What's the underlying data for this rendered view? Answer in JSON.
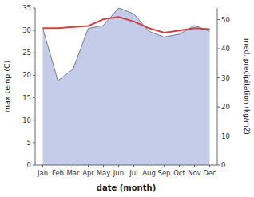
{
  "chart_data": {
    "type": "line",
    "xlabel": "date (month)",
    "ylabel": "max temp (C)",
    "y2label": "med. precipitation (kg/m2)",
    "categories": [
      "Jan",
      "Feb",
      "Mar",
      "Apr",
      "May",
      "Jun",
      "Jul",
      "Aug",
      "Sep",
      "Oct",
      "Nov",
      "Dec"
    ],
    "series": [
      {
        "type": "area",
        "axis": "y2",
        "color": "#c5ccea",
        "values": [
          47,
          29,
          33,
          47,
          48,
          54,
          52,
          46,
          44,
          45,
          48,
          46
        ]
      },
      {
        "type": "line",
        "color": "#cc4444",
        "values": [
          30.5,
          30.5,
          30.8,
          31.0,
          32.5,
          33.0,
          32.0,
          30.5,
          29.5,
          30.0,
          30.5,
          30.3
        ]
      }
    ],
    "ylim": [
      0,
      35
    ],
    "yticks": [
      0,
      5,
      10,
      15,
      20,
      25,
      30,
      35
    ],
    "y2lim": [
      0,
      54
    ],
    "y2ticks": [
      0,
      10,
      20,
      30,
      40,
      50
    ],
    "grid": false
  }
}
